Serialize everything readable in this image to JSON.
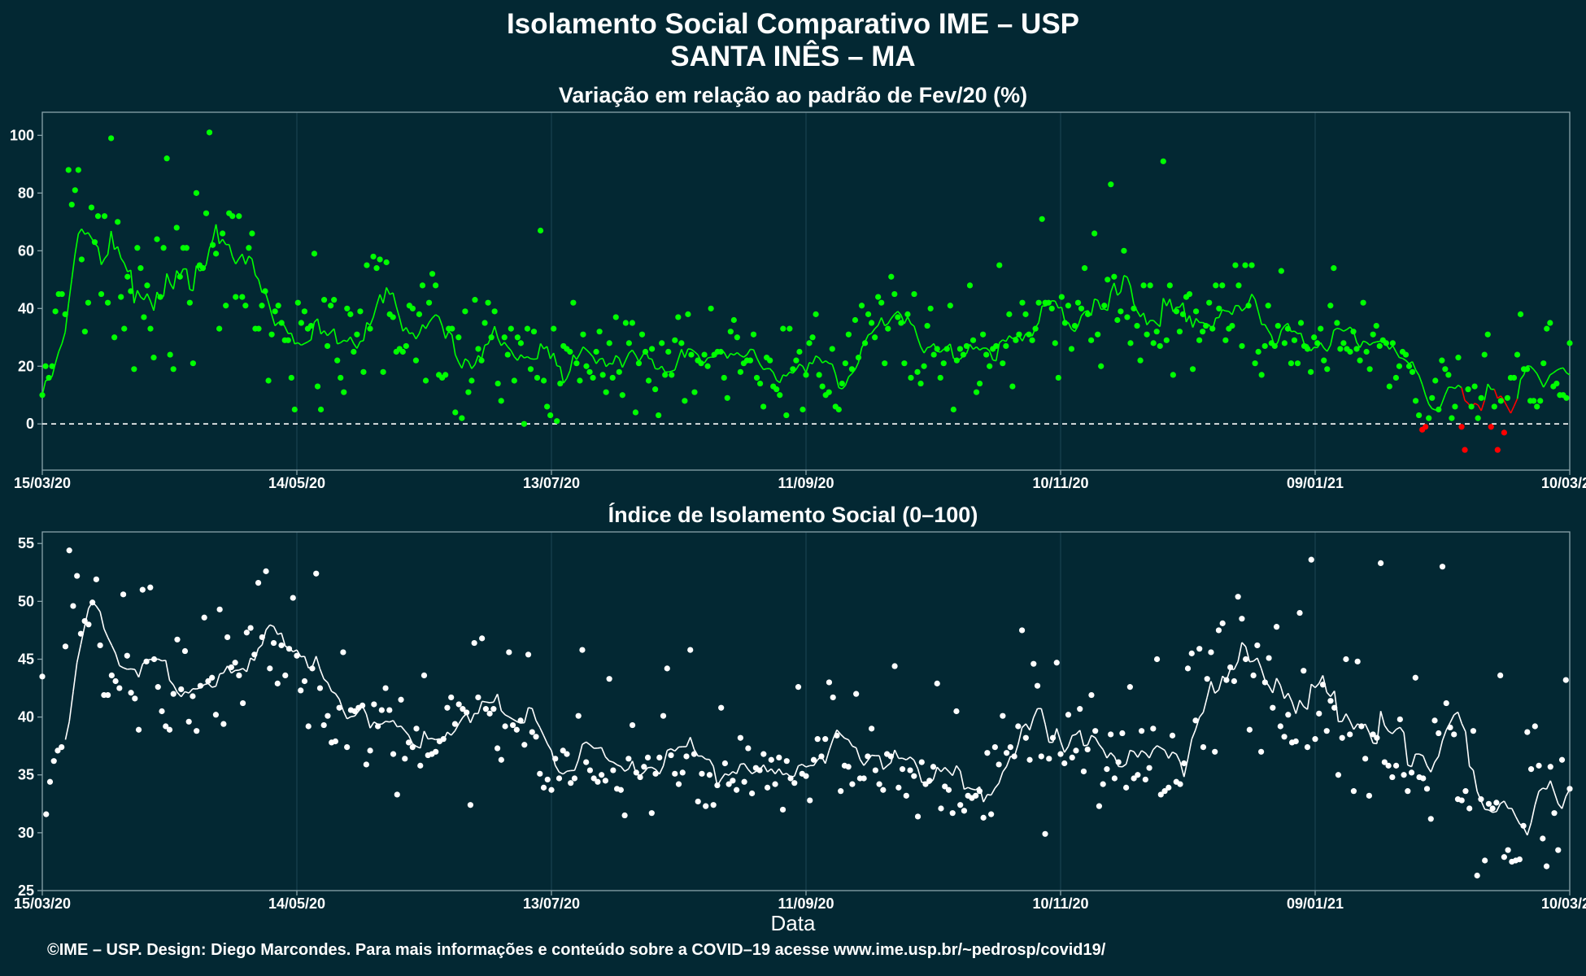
{
  "title": "Isolamento Social Comparativo IME – USP",
  "subtitle": "SANTA INÊS – MA",
  "footer": "©IME – USP. Design: Diego Marcondes. Para mais informações e conteúdo sobre a COVID–19 acesse www.ime.usp.br/~pedrosp/covid19/",
  "colors": {
    "background": "#032833",
    "positive": "#00ff00",
    "negative": "#ff0000",
    "index": "#ffffff",
    "grid": "#1d4654",
    "axis": "#8aa3ab"
  },
  "chart_data": [
    {
      "type": "scatter",
      "title": "Variação em relação ao padrão de Fev/20 (%)",
      "x_tick_labels": [
        "15/03/20",
        "14/05/20",
        "13/07/20",
        "11/09/20",
        "10/11/20",
        "09/01/21",
        "10/03/21"
      ],
      "y_ticks": [
        0,
        20,
        40,
        60,
        80,
        100
      ],
      "ylim": [
        -16,
        108
      ],
      "reference_line": 0,
      "moving_average": true,
      "x_day0": "15/03/20",
      "points_every_day": [
        10,
        20,
        16,
        20,
        39,
        45,
        45,
        38,
        88,
        76,
        81,
        88,
        57,
        32,
        42,
        75,
        63,
        72,
        45,
        72,
        42,
        99,
        30,
        70,
        44,
        33,
        51,
        46,
        19,
        61,
        54,
        37,
        48,
        33,
        23,
        64,
        44,
        61,
        92,
        24,
        19,
        68,
        51,
        61,
        61,
        42,
        21,
        80,
        55,
        54,
        73,
        101,
        62,
        59,
        33,
        66,
        41,
        73,
        72,
        44,
        72,
        44,
        41,
        61,
        66,
        33,
        33,
        41,
        46,
        15,
        31,
        39,
        41,
        35,
        29,
        29,
        16,
        5,
        42,
        35,
        39,
        33,
        34,
        59,
        13,
        5,
        43,
        27,
        41,
        43,
        22,
        16,
        11,
        40,
        38,
        25,
        31,
        39,
        18,
        55,
        33,
        58,
        54,
        57,
        18,
        56,
        38,
        37,
        25,
        26,
        25,
        27,
        41,
        40,
        22,
        38,
        48,
        15,
        42,
        52,
        48,
        17,
        16,
        17,
        33,
        33,
        4,
        30,
        2,
        39,
        11,
        15,
        43,
        26,
        22,
        35,
        42,
        30,
        39,
        14,
        8,
        30,
        24,
        33,
        15,
        30,
        28,
        0,
        33,
        19,
        32,
        16,
        67,
        15,
        6,
        3,
        33,
        1,
        14,
        27,
        26,
        25,
        42,
        21,
        15,
        31,
        20,
        18,
        16,
        25,
        32,
        17,
        11,
        28,
        16,
        37,
        18,
        10,
        35,
        28,
        35,
        4,
        21,
        31,
        25,
        15,
        26,
        12,
        3,
        28,
        17,
        25,
        17,
        29,
        37,
        28,
        8,
        38,
        24,
        11,
        22,
        21,
        24,
        20,
        40,
        24,
        25,
        25,
        16,
        9,
        32,
        36,
        30,
        18,
        21,
        22,
        22,
        31,
        16,
        14,
        6,
        23,
        22,
        13,
        12,
        10,
        33,
        3,
        33,
        19,
        22,
        25,
        5,
        17,
        28,
        30,
        38,
        17,
        13,
        10,
        11,
        26,
        6,
        5,
        14,
        21,
        31,
        19,
        36,
        23,
        41,
        28,
        38,
        35,
        30,
        44,
        42,
        21,
        33,
        51,
        45,
        37,
        35,
        21,
        38,
        16,
        45,
        18,
        14,
        20,
        34,
        40,
        24,
        26,
        16,
        21,
        26,
        41,
        5,
        22,
        26,
        24,
        27,
        48,
        29,
        11,
        14,
        31,
        24,
        20,
        26,
        27,
        55,
        21,
        27,
        38,
        13,
        29,
        31,
        42,
        38,
        31,
        29,
        33,
        42,
        71,
        42,
        42,
        40,
        28,
        16,
        44,
        35,
        41,
        26,
        34,
        42,
        40,
        54,
        38,
        29,
        66,
        31,
        20,
        41,
        50,
        83,
        51,
        36,
        39,
        60,
        37,
        28,
        40,
        34,
        22,
        48,
        31,
        48,
        28,
        32,
        27,
        91,
        29,
        48,
        17,
        39,
        32,
        38,
        44,
        45,
        19,
        39,
        29,
        32,
        34,
        42,
        33,
        48,
        40,
        48,
        29,
        33,
        34,
        55,
        48,
        27,
        55,
        41,
        55,
        21,
        25,
        17,
        27,
        41,
        28,
        27,
        34,
        53,
        28,
        33,
        21,
        29,
        21,
        35,
        27,
        26,
        18,
        30,
        28,
        33,
        22,
        19,
        41,
        54,
        35,
        26,
        28,
        26,
        25,
        32,
        26,
        22,
        42,
        25,
        19,
        31,
        34,
        27,
        29,
        28,
        13,
        28,
        16,
        20,
        25,
        24,
        20,
        18,
        8,
        3,
        -2,
        -1,
        2,
        9,
        15,
        5,
        22,
        19,
        17,
        2,
        6,
        23,
        -1,
        -9,
        12,
        6,
        13,
        2,
        9,
        24,
        31,
        -1,
        6,
        -9,
        8,
        -3,
        9,
        16,
        16,
        24,
        38,
        19,
        19,
        8,
        8,
        6,
        8,
        21,
        33,
        35,
        13,
        14,
        10,
        10,
        9,
        28
      ]
    },
    {
      "type": "scatter",
      "title": "Índice de Isolamento Social (0–100)",
      "x_tick_labels": [
        "15/03/20",
        "14/05/20",
        "13/07/20",
        "11/09/20",
        "10/11/20",
        "09/01/21",
        "10/03/21"
      ],
      "y_ticks": [
        25,
        30,
        35,
        40,
        45,
        50,
        55
      ],
      "ylim": [
        25,
        56
      ],
      "xlabel": "Data",
      "moving_average": true,
      "x_day0": "15/03/20",
      "points_every_day": [
        43.5,
        31.6,
        34.4,
        36.2,
        37.1,
        37.4,
        46.1,
        54.4,
        49.6,
        52.2,
        47.2,
        48.3,
        48.0,
        49.9,
        51.9,
        46.2,
        41.9,
        41.9,
        43.6,
        43.1,
        42.5,
        50.6,
        45.3,
        42.1,
        41.6,
        38.9,
        51.0,
        44.8,
        51.2,
        45.0,
        42.6,
        40.5,
        39.2,
        38.9,
        42.0,
        46.7,
        42.4,
        45.7,
        39.6,
        41.8,
        38.8,
        42.7,
        48.6,
        43.1,
        43.4,
        40.2,
        49.3,
        39.4,
        46.9,
        44.3,
        44.7,
        43.6,
        41.2,
        47.3,
        47.7,
        45.4,
        51.6,
        46.9,
        52.6,
        44.2,
        46.4,
        42.9,
        46.2,
        43.6,
        45.9,
        50.3,
        45.3,
        42.3,
        43.1,
        39.2,
        44.2,
        52.4,
        42.5,
        39.3,
        40.1,
        37.8,
        37.9,
        40.8,
        45.6,
        37.4,
        40.6,
        40.5,
        40.8,
        41.0,
        35.9,
        37.1,
        41.1,
        39.2,
        40.6,
        42.5,
        40.6,
        36.8,
        33.3,
        41.5,
        36.4,
        37.8,
        37.4,
        39.0,
        35.8,
        43.6,
        36.7,
        36.8,
        37.0,
        37.9,
        38.1,
        40.8,
        41.7,
        39.4,
        41.1,
        40.7,
        40.4,
        32.4,
        46.4,
        41.7,
        46.8,
        40.7,
        40.3,
        40.7,
        37.3,
        36.3,
        39.2,
        45.6,
        39.3,
        38.9,
        39.7,
        37.6,
        45.4,
        38.7,
        38.3,
        35.1,
        33.9,
        34.6,
        33.7,
        36.4,
        34.7,
        37.1,
        36.8,
        34.3,
        34.7,
        40.1,
        45.8,
        36.1,
        35.4,
        34.7,
        34.4,
        35.0,
        34.5,
        43.3,
        35.4,
        33.8,
        33.7,
        31.5,
        36.4,
        39.3,
        35.2,
        34.8,
        35.7,
        36.5,
        31.7,
        35.1,
        36.5,
        40.1,
        44.2,
        36.7,
        35.1,
        34.2,
        35.2,
        36.6,
        45.8,
        36.8,
        32.7,
        35.1,
        32.3,
        35.0,
        32.4,
        34.1,
        40.8,
        36.0,
        34.2,
        34.5,
        33.7,
        38.2,
        34.4,
        37.3,
        33.4,
        35.6,
        35.4,
        36.8,
        33.9,
        36.3,
        34.2,
        36.5,
        32.0,
        36.2,
        34.7,
        34.3,
        42.6,
        35.1,
        34.9,
        32.8,
        36.3,
        38.1,
        36.6,
        38.1,
        43.0,
        41.7,
        38.4,
        33.6,
        35.8,
        35.7,
        34.2,
        42.0,
        34.7,
        34.7,
        36.6,
        39.0,
        35.4,
        34.2,
        33.7,
        36.8,
        36.6,
        44.4,
        33.9,
        35.5,
        33.2,
        35.4,
        34.9,
        31.4,
        36.1,
        34.2,
        34.5,
        35.7,
        42.9,
        32.1,
        34.0,
        33.7,
        31.7,
        40.5,
        32.4,
        31.9,
        33.2,
        33.0,
        33.2,
        33.6,
        31.3,
        36.9,
        31.6,
        37.4,
        35.9,
        40.1,
        36.9,
        37.4,
        36.6,
        39.2,
        47.5,
        38.2,
        36.3,
        44.6,
        42.7,
        36.6,
        29.9,
        36.4,
        38.2,
        44.7,
        36.8,
        36.0,
        40.2,
        36.5,
        37.1,
        40.7,
        35.3,
        37.2,
        41.9,
        38.8,
        32.3,
        34.2,
        35.5,
        38.5,
        34.7,
        36.1,
        38.6,
        33.9,
        42.6,
        34.7,
        35.0,
        38.8,
        34.6,
        35.6,
        39.0,
        45.0,
        33.3,
        33.6,
        33.9,
        38.4,
        34.4,
        34.2,
        36.0,
        44.2,
        45.5,
        39.7,
        45.9,
        37.4,
        43.3,
        45.6,
        37.0,
        47.5,
        48.1,
        43.2,
        44.3,
        43.1,
        50.4,
        48.5,
        45.0,
        38.9,
        43.6,
        46.2,
        37.0,
        43.0,
        45.1,
        40.8,
        47.8,
        39.2,
        38.3,
        40.2,
        37.8,
        37.9,
        49.0,
        44.0,
        37.4,
        53.6,
        38.1,
        40.3,
        42.8,
        38.8,
        41.4,
        40.8,
        35.0,
        38.2,
        45.0,
        38.5,
        33.6,
        44.8,
        39.2,
        36.4,
        33.2,
        38.5,
        38.2,
        53.3,
        36.1,
        35.8,
        34.8,
        35.8,
        39.8,
        35.0,
        33.6,
        35.2,
        43.4,
        34.8,
        34.7,
        33.8,
        31.2,
        39.7,
        38.6,
        53.0,
        41.2,
        39.1,
        38.5,
        32.9,
        32.8,
        33.6,
        32.1,
        38.8,
        26.3,
        32.9,
        27.6,
        32.5,
        32.1,
        32.6,
        43.6,
        27.9,
        28.5,
        27.5,
        27.6,
        27.7,
        30.6,
        38.7,
        35.5,
        39.2,
        35.8,
        29.5,
        27.1,
        35.7,
        31.7,
        28.5,
        36.3,
        43.2,
        33.8
      ]
    }
  ]
}
